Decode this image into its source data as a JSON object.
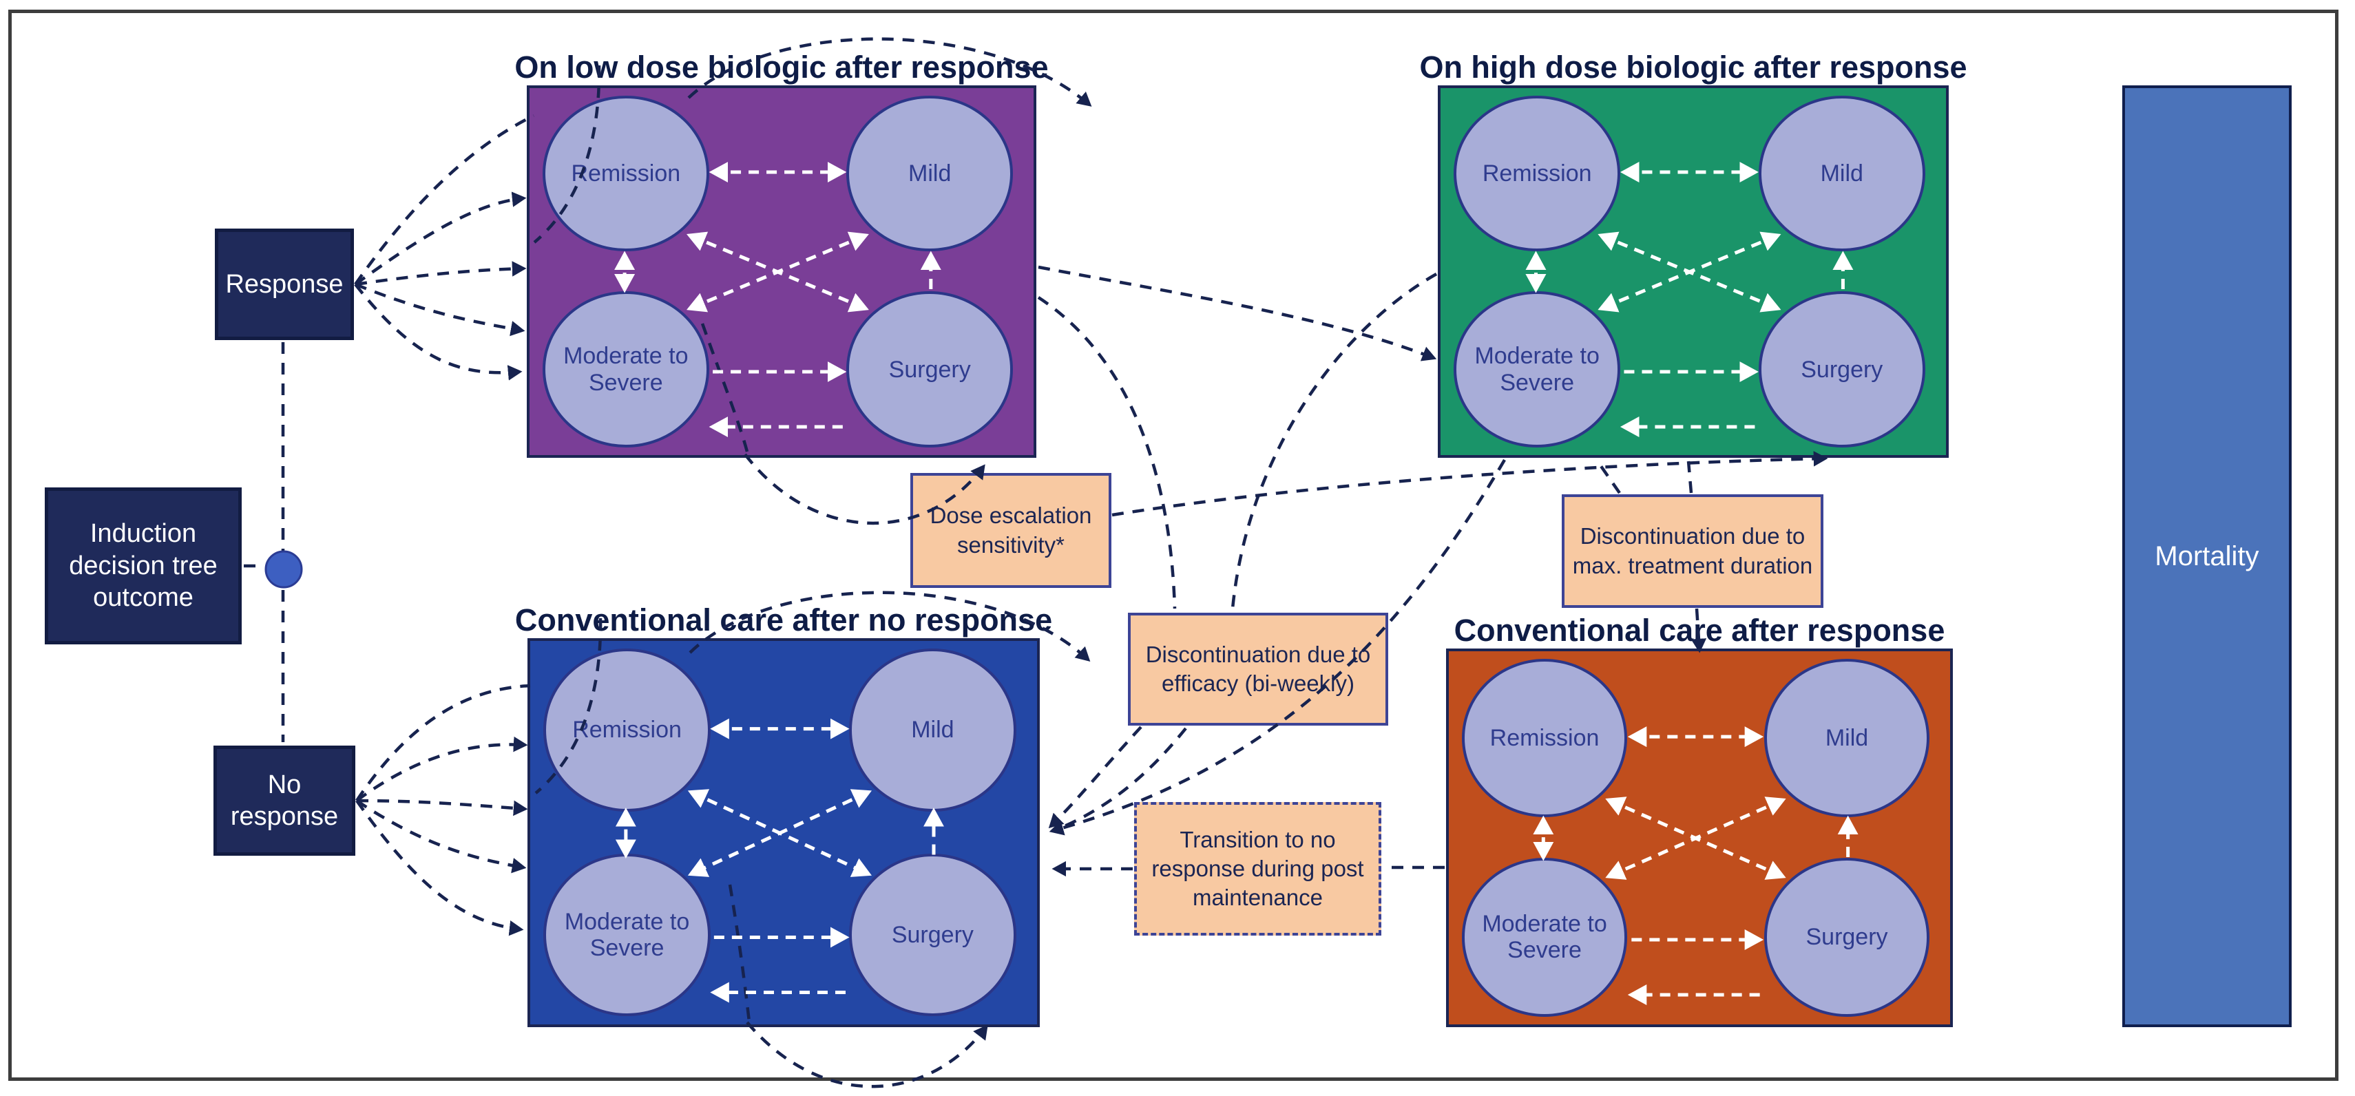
{
  "diagram": {
    "left_column": {
      "response": "Response",
      "induction": "Induction decision tree outcome",
      "no_response": "No response"
    },
    "panels": [
      {
        "title": "On low dose biologic after response",
        "color": "#7A3E97",
        "states": [
          "Remission",
          "Mild",
          "Moderate to Severe",
          "Surgery"
        ]
      },
      {
        "title": "On high dose biologic after response",
        "color": "#1A9469",
        "states": [
          "Remission",
          "Mild",
          "Moderate to Severe",
          "Surgery"
        ]
      },
      {
        "title": "Conventional care after no response",
        "color": "#2347A5",
        "states": [
          "Remission",
          "Mild",
          "Moderate to Severe",
          "Surgery"
        ]
      },
      {
        "title": "Conventional care after response",
        "color": "#C04E1D",
        "states": [
          "Remission",
          "Mild",
          "Moderate to Severe",
          "Surgery"
        ]
      }
    ],
    "notes": [
      {
        "text": "Dose escalation sensitivity*"
      },
      {
        "text": "Discontinuation due to max. treatment duration"
      },
      {
        "text": "Discontinuation due to efficacy (bi-weekly)"
      },
      {
        "text": "Transition to no response during post maintenance"
      }
    ],
    "mortality": "Mortality",
    "colors": {
      "state_fill": "#A8ADD8",
      "state_border": "#2B3688",
      "state_text": "#2F3C8E",
      "navy_box": "#1F2A5A",
      "peach": "#F8C9A2",
      "peach_border": "#3D4496",
      "arrow_navy": "#17234F",
      "arrow_white": "#FFFFFF",
      "mortality_fill": "#4B73BA",
      "title_text": "#0E1C46",
      "connector_dot": "#3D5FC1"
    }
  }
}
